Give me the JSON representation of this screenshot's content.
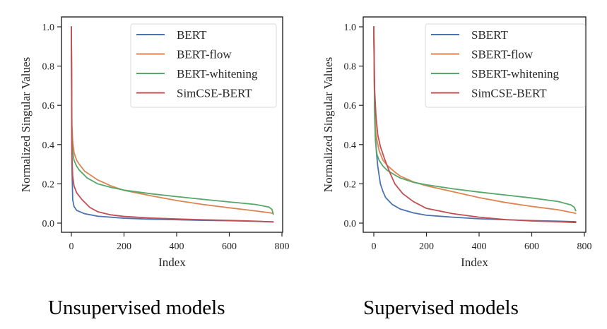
{
  "chart_data": [
    {
      "type": "line",
      "title": "",
      "caption": "Unsupervised models",
      "xlabel": "Index",
      "ylabel": "Normalized Singular Values",
      "xlim": [
        -40,
        800
      ],
      "ylim": [
        -0.05,
        1.05
      ],
      "xticks": [
        0,
        200,
        400,
        600,
        800
      ],
      "xtick_labels": [
        "0",
        "200",
        "400",
        "600",
        "800"
      ],
      "yticks": [
        0.0,
        0.2,
        0.4,
        0.6,
        0.8,
        1.0
      ],
      "ytick_labels": [
        "0.0",
        "0.2",
        "0.4",
        "0.6",
        "0.8",
        "1.0"
      ],
      "grid": false,
      "legend": "top-right",
      "series": [
        {
          "name": "BERT",
          "color": "#4c72b0",
          "x": [
            0,
            2,
            5,
            10,
            20,
            50,
            100,
            200,
            300,
            400,
            500,
            600,
            700,
            767
          ],
          "y": [
            1.0,
            0.3,
            0.12,
            0.085,
            0.065,
            0.048,
            0.035,
            0.025,
            0.02,
            0.017,
            0.014,
            0.012,
            0.009,
            0.006
          ]
        },
        {
          "name": "BERT-flow",
          "color": "#dd8452",
          "x": [
            0,
            2,
            5,
            10,
            20,
            30,
            50,
            100,
            150,
            200,
            300,
            400,
            500,
            600,
            700,
            767
          ],
          "y": [
            1.0,
            0.5,
            0.42,
            0.36,
            0.32,
            0.3,
            0.265,
            0.22,
            0.19,
            0.167,
            0.14,
            0.115,
            0.095,
            0.078,
            0.062,
            0.05
          ]
        },
        {
          "name": "BERT-whitening",
          "color": "#55a868",
          "x": [
            0,
            2,
            5,
            10,
            20,
            30,
            60,
            100,
            150,
            200,
            300,
            400,
            500,
            600,
            700,
            750,
            762,
            767
          ],
          "y": [
            1.0,
            0.42,
            0.36,
            0.32,
            0.29,
            0.27,
            0.23,
            0.2,
            0.182,
            0.168,
            0.15,
            0.135,
            0.121,
            0.108,
            0.095,
            0.082,
            0.07,
            0.045
          ]
        },
        {
          "name": "SimCSE-BERT",
          "color": "#c44e52",
          "x": [
            0,
            2,
            5,
            10,
            20,
            40,
            70,
            100,
            150,
            200,
            300,
            400,
            500,
            600,
            700,
            767
          ],
          "y": [
            1.0,
            0.35,
            0.24,
            0.19,
            0.155,
            0.12,
            0.08,
            0.058,
            0.042,
            0.034,
            0.026,
            0.021,
            0.017,
            0.014,
            0.01,
            0.006
          ]
        }
      ]
    },
    {
      "type": "line",
      "title": "",
      "caption": "Supervised models",
      "xlabel": "Index",
      "ylabel": "Normalized Singular Values",
      "xlim": [
        -40,
        800
      ],
      "ylim": [
        -0.05,
        1.05
      ],
      "xticks": [
        0,
        200,
        400,
        600,
        800
      ],
      "xtick_labels": [
        "0",
        "200",
        "400",
        "600",
        "800"
      ],
      "yticks": [
        0.0,
        0.2,
        0.4,
        0.6,
        0.8,
        1.0
      ],
      "ytick_labels": [
        "0.0",
        "0.2",
        "0.4",
        "0.6",
        "0.8",
        "1.0"
      ],
      "grid": false,
      "legend": "top-right",
      "series": [
        {
          "name": "SBERT",
          "color": "#4c72b0",
          "x": [
            0,
            3,
            6,
            10,
            15,
            25,
            35,
            45,
            70,
            100,
            150,
            200,
            300,
            400,
            500,
            600,
            700,
            767
          ],
          "y": [
            1.0,
            0.6,
            0.45,
            0.36,
            0.29,
            0.2,
            0.16,
            0.13,
            0.095,
            0.072,
            0.052,
            0.04,
            0.03,
            0.022,
            0.017,
            0.013,
            0.01,
            0.007
          ]
        },
        {
          "name": "SBERT-flow",
          "color": "#dd8452",
          "x": [
            0,
            3,
            8,
            20,
            35,
            50,
            80,
            100,
            150,
            200,
            300,
            400,
            500,
            600,
            700,
            767
          ],
          "y": [
            1.0,
            0.6,
            0.45,
            0.37,
            0.32,
            0.295,
            0.26,
            0.24,
            0.21,
            0.19,
            0.16,
            0.13,
            0.105,
            0.085,
            0.068,
            0.05
          ]
        },
        {
          "name": "SBERT-whitening",
          "color": "#55a868",
          "x": [
            0,
            3,
            6,
            12,
            20,
            35,
            50,
            80,
            100,
            150,
            200,
            300,
            400,
            500,
            600,
            700,
            750,
            762,
            767
          ],
          "y": [
            1.0,
            0.55,
            0.42,
            0.35,
            0.32,
            0.29,
            0.27,
            0.245,
            0.23,
            0.208,
            0.195,
            0.175,
            0.158,
            0.143,
            0.128,
            0.11,
            0.092,
            0.08,
            0.063
          ]
        },
        {
          "name": "SimCSE-BERT",
          "color": "#c44e52",
          "x": [
            0,
            3,
            8,
            15,
            25,
            40,
            60,
            80,
            110,
            150,
            200,
            300,
            400,
            500,
            600,
            700,
            767
          ],
          "y": [
            1.0,
            0.68,
            0.55,
            0.45,
            0.39,
            0.33,
            0.26,
            0.2,
            0.15,
            0.11,
            0.075,
            0.048,
            0.03,
            0.018,
            0.011,
            0.007,
            0.003
          ]
        }
      ]
    }
  ]
}
